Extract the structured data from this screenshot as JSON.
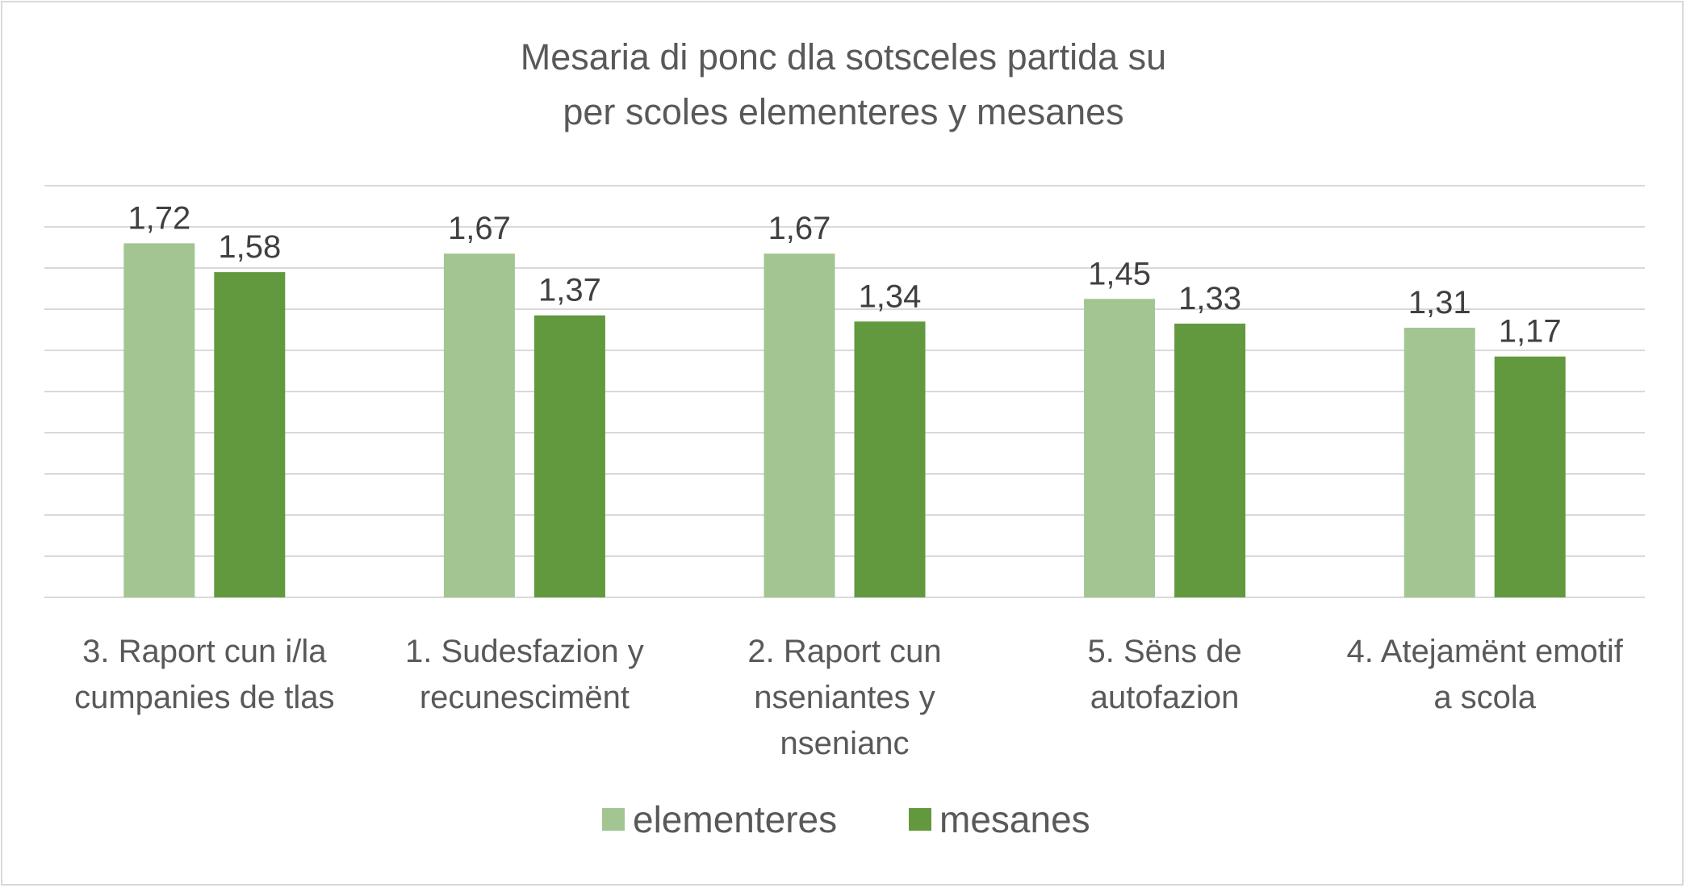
{
  "chart_data": {
    "type": "bar",
    "title_lines": [
      "Mesaria di ponc dla sotsceles partida su",
      "per scoles elementeres y mesanes"
    ],
    "categories": [
      [
        "3. Raport cun i/la",
        "cumpanies de tlas"
      ],
      [
        "1. Sudesfazion y",
        "recunescimënt"
      ],
      [
        "2. Raport cun",
        "nseniantes y",
        "nsenianc"
      ],
      [
        "5. Sëns de",
        "autofazion"
      ],
      [
        "4. Atejamënt emotif",
        "a scola"
      ]
    ],
    "series": [
      {
        "name": "elementeres",
        "color": "#a2c592",
        "values": [
          1.72,
          1.67,
          1.67,
          1.45,
          1.31
        ],
        "labels": [
          "1,72",
          "1,67",
          "1,67",
          "1,45",
          "1,31"
        ]
      },
      {
        "name": "mesanes",
        "color": "#62993e",
        "values": [
          1.58,
          1.37,
          1.34,
          1.33,
          1.17
        ],
        "labels": [
          "1,58",
          "1,37",
          "1,34",
          "1,33",
          "1,17"
        ]
      }
    ],
    "ylim": [
      0,
      2.0
    ],
    "grid_step": 0.2,
    "grid": true,
    "y_axis_labels_shown": false,
    "legend_position": "bottom"
  }
}
